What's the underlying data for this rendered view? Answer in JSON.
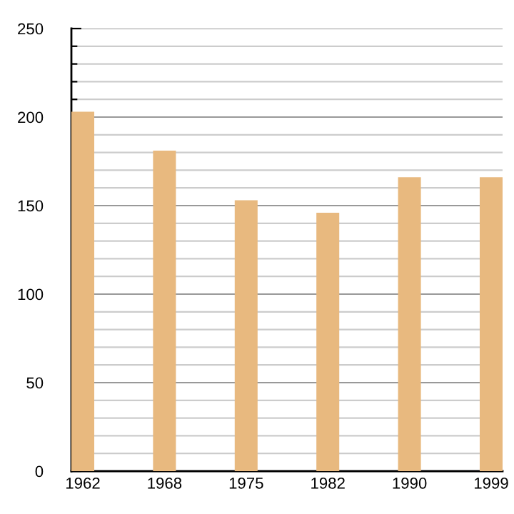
{
  "chart_data": {
    "type": "bar",
    "categories": [
      "1962",
      "1968",
      "1975",
      "1982",
      "1990",
      "1999"
    ],
    "values": [
      203,
      181,
      153,
      146,
      166,
      166
    ],
    "color": "#e8b97f",
    "ylim": [
      0,
      250
    ],
    "yticks": [
      0,
      {
        "value": 10,
        "label": null
      },
      {
        "value": 20,
        "label": null
      },
      {
        "value": 30,
        "label": null
      },
      {
        "value": 40,
        "label": null
      },
      50,
      {
        "value": 60,
        "label": null
      },
      {
        "value": 70,
        "label": null
      },
      {
        "value": 80,
        "label": null
      },
      {
        "value": 90,
        "label": null
      },
      100,
      {
        "value": 110,
        "label": null
      },
      {
        "value": 120,
        "label": null
      },
      {
        "value": 130,
        "label": null
      },
      {
        "value": 140,
        "label": null
      },
      150,
      {
        "value": 160,
        "label": null
      },
      {
        "value": 170,
        "label": null
      },
      {
        "value": 180,
        "label": null
      },
      {
        "value": 190,
        "label": null
      },
      200,
      {
        "value": 210,
        "label": null
      },
      {
        "value": 220,
        "label": null
      },
      {
        "value": 230,
        "label": null
      },
      {
        "value": 240,
        "label": null
      },
      250
    ],
    "grid": "y"
  }
}
